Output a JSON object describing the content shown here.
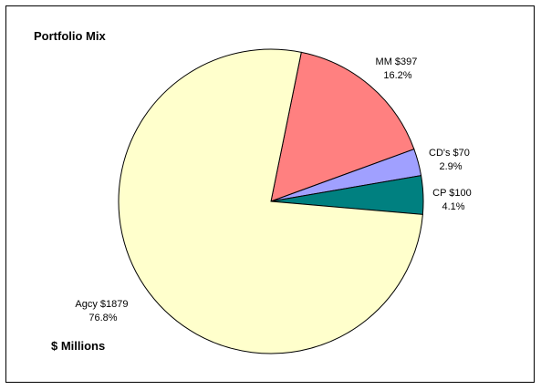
{
  "chart_data": {
    "type": "pie",
    "title": "Portfolio Mix",
    "units_label": "$ Millions",
    "slices": [
      {
        "name": "MM",
        "value": 397,
        "value_label": "$397",
        "percent_label": "16.2%",
        "color": "#FF8080"
      },
      {
        "name": "CD's",
        "value": 70,
        "value_label": "$70",
        "percent_label": "2.9%",
        "color": "#A0A0FF"
      },
      {
        "name": "CP",
        "value": 100,
        "value_label": "$100",
        "percent_label": "4.1%",
        "color": "#008080"
      },
      {
        "name": "Agcy",
        "value": 1879,
        "value_label": "$1879",
        "percent_label": "76.8%",
        "color": "#FFFFCC"
      }
    ],
    "start_angle_deg": 78.5,
    "direction": "clockwise",
    "slice_border_color": "#000000"
  }
}
